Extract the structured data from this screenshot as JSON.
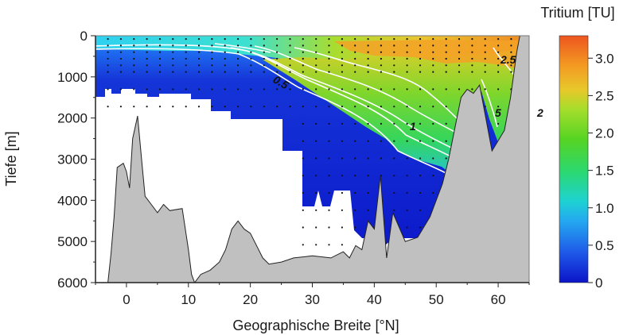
{
  "chart_data": {
    "type": "heatmap",
    "title": "",
    "xlabel": "Geographische Breite [°N]",
    "ylabel": "Tiefe [m]",
    "xlim": [
      -5,
      65
    ],
    "ylim": [
      6000,
      0
    ],
    "x_tick_labels": [
      "0",
      "10",
      "20",
      "30",
      "40",
      "50",
      "60"
    ],
    "y_tick_labels": [
      "0",
      "1000",
      "2000",
      "3000",
      "4000",
      "5000",
      "6000"
    ],
    "colorbar": {
      "title": "Tritium [TU]",
      "range": [
        0,
        3.3
      ],
      "tick_labels": [
        "3.0",
        "2.5",
        "2.0",
        "1.5",
        "1.0",
        "0.5",
        "0"
      ],
      "colors": [
        "#0b14c8",
        "#1f58e8",
        "#24a8f0",
        "#1ed2d2",
        "#2bd870",
        "#56d423",
        "#a4dd2b",
        "#e7c82a",
        "#f39a22",
        "#ee5520"
      ]
    },
    "contour_labels": [
      "0.5",
      "1",
      "2.5",
      "5",
      "2"
    ],
    "series": [
      {
        "values": [
          [
            -3,
            6000
          ],
          [
            -2.5,
            5300
          ],
          [
            -2,
            4400
          ],
          [
            -1.5,
            3200
          ],
          [
            -0.5,
            3100
          ],
          [
            0,
            3300
          ],
          [
            0.5,
            3700
          ],
          [
            1,
            2500
          ],
          [
            1.8,
            1950
          ],
          [
            2.5,
            3100
          ],
          [
            3,
            3900
          ],
          [
            4,
            4100
          ],
          [
            5,
            4300
          ],
          [
            6,
            4100
          ],
          [
            7,
            4250
          ],
          [
            9,
            4200
          ],
          [
            10,
            5200
          ],
          [
            10.5,
            5800
          ],
          [
            11,
            6000
          ],
          [
            12,
            5800
          ],
          [
            13.5,
            5700
          ],
          [
            15,
            5500
          ],
          [
            16,
            5200
          ],
          [
            17,
            4700
          ],
          [
            18,
            4500
          ],
          [
            19,
            4700
          ],
          [
            20,
            4800
          ],
          [
            21,
            5100
          ],
          [
            22,
            5400
          ],
          [
            23,
            5550
          ],
          [
            25,
            5500
          ],
          [
            27,
            5400
          ],
          [
            30,
            5350
          ],
          [
            33,
            5400
          ],
          [
            35,
            5250
          ],
          [
            36,
            5400
          ],
          [
            37,
            5100
          ],
          [
            38,
            5200
          ],
          [
            39,
            4500
          ],
          [
            40,
            4700
          ],
          [
            41,
            3400
          ],
          [
            42,
            5400
          ],
          [
            43,
            4300
          ],
          [
            45,
            5000
          ],
          [
            47,
            4900
          ],
          [
            49,
            4400
          ],
          [
            51,
            3600
          ],
          [
            52,
            3000
          ],
          [
            54,
            1500
          ],
          [
            55,
            1300
          ],
          [
            56,
            1400
          ],
          [
            57,
            1200
          ],
          [
            58,
            2000
          ],
          [
            59,
            2800
          ],
          [
            61,
            2300
          ],
          [
            62,
            1500
          ],
          [
            63,
            400
          ],
          [
            63.5,
            0
          ]
        ]
      }
    ]
  }
}
